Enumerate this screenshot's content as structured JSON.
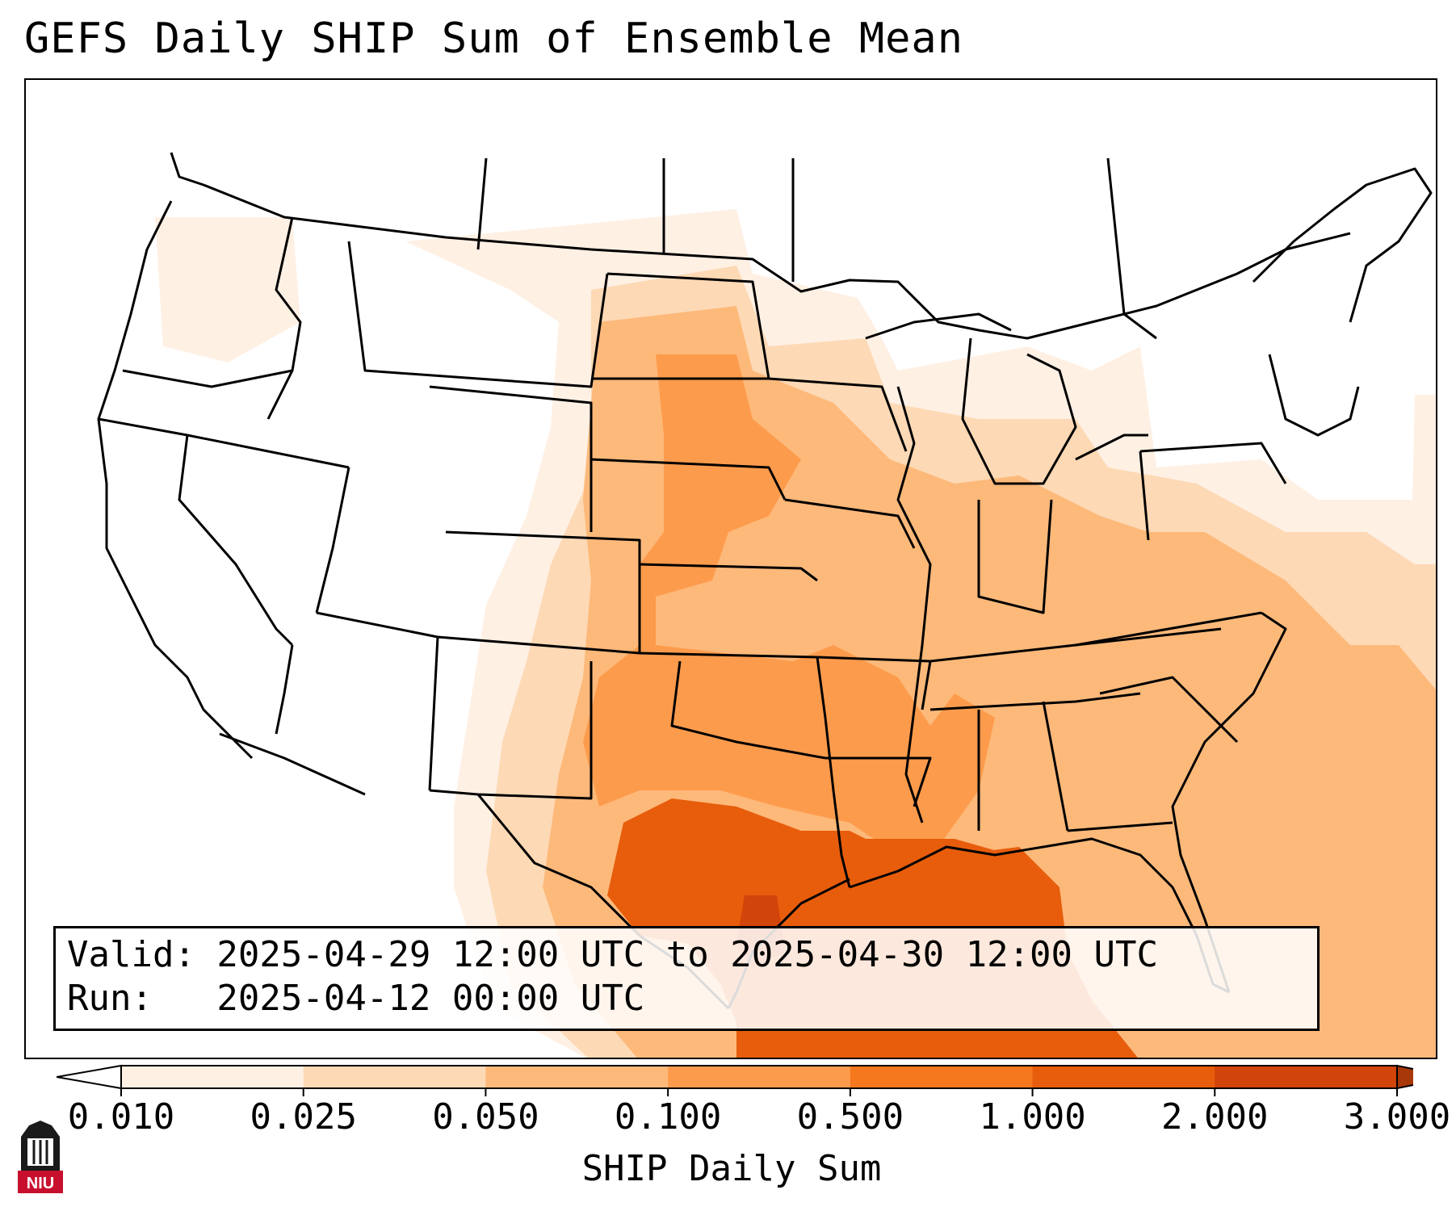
{
  "title": "GEFS Daily SHIP Sum of Ensemble Mean",
  "info": {
    "valid_line": "Valid: 2025-04-29 12:00 UTC to 2025-04-30 12:00 UTC",
    "run_line": "Run:   2025-04-12 00:00 UTC"
  },
  "colorbar": {
    "label": "SHIP Daily Sum",
    "ticks": [
      "0.010",
      "0.025",
      "0.050",
      "0.100",
      "0.500",
      "1.000",
      "2.000",
      "3.000"
    ],
    "colors": [
      "#fff0e4",
      "#fdd9b5",
      "#fdb97a",
      "#fd9b4c",
      "#f5781f",
      "#e75d0c",
      "#d1440a"
    ],
    "extend_low_color": "#ffffff",
    "extend_high_color": "#a83807"
  },
  "map": {
    "projection": "lambert-conformal",
    "region": "CONUS",
    "borders_color": "#000000",
    "gulf_color": "#e75d0c",
    "atlantic_color": "#fdb97a"
  },
  "logo": {
    "text": "NIU",
    "color": "#c8102e"
  }
}
